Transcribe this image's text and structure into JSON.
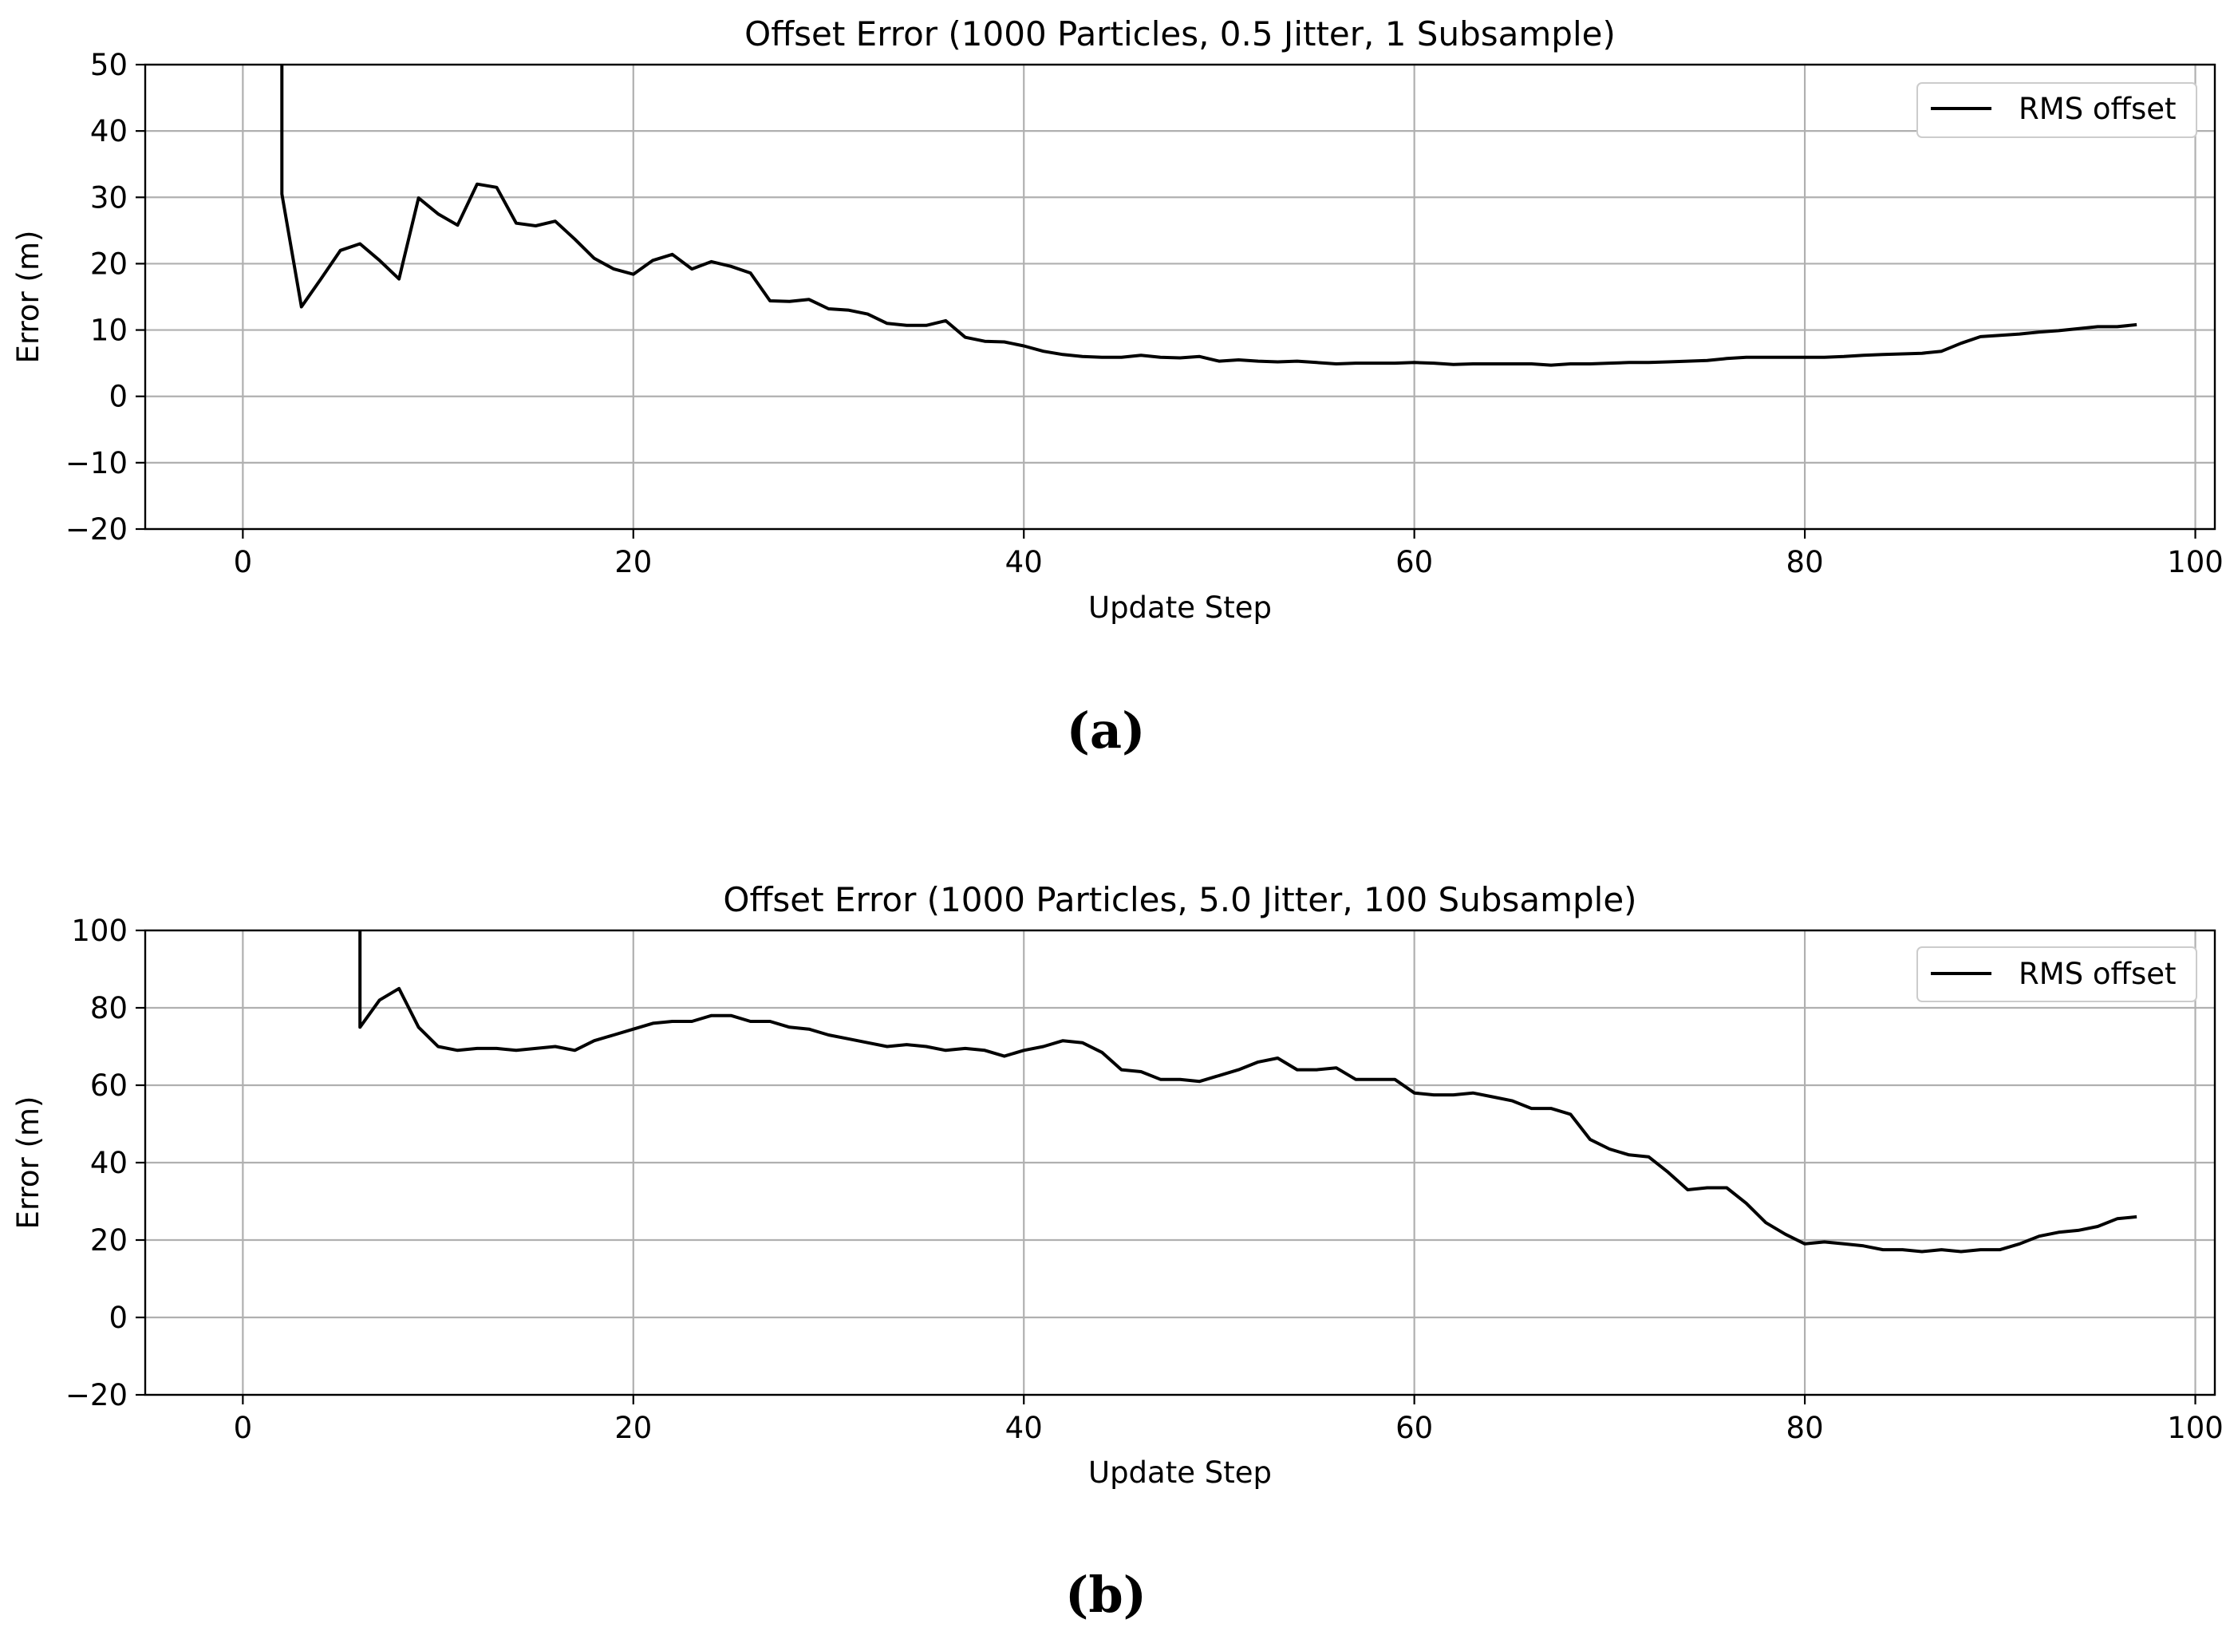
{
  "chart_data": [
    {
      "type": "line",
      "title": "Offset Error (1000 Particles, 0.5 Jitter, 1 Subsample)",
      "xlabel": "Update Step",
      "ylabel": "Error (m)",
      "xlim": [
        -5,
        101
      ],
      "ylim": [
        -20,
        50
      ],
      "xticks": [
        0,
        20,
        40,
        60,
        80,
        100
      ],
      "yticks": [
        -20,
        -10,
        0,
        10,
        20,
        30,
        40,
        50
      ],
      "grid": true,
      "legend": "top-right",
      "panel_label": "(a)",
      "series": [
        {
          "name": "RMS offset",
          "color": "#000000",
          "x": [
            2,
            2,
            2,
            3,
            4,
            5,
            6,
            7,
            8,
            9,
            10,
            11,
            12,
            13,
            14,
            15,
            16,
            17,
            18,
            19,
            20,
            21,
            22,
            23,
            24,
            25,
            26,
            27,
            28,
            29,
            30,
            31,
            32,
            33,
            34,
            35,
            36,
            37,
            38,
            39,
            40,
            41,
            42,
            43,
            44,
            45,
            46,
            47,
            48,
            49,
            50,
            51,
            52,
            53,
            54,
            55,
            56,
            57,
            58,
            59,
            60,
            61,
            62,
            63,
            64,
            65,
            66,
            67,
            68,
            69,
            70,
            71,
            72,
            73,
            74,
            75,
            76,
            77,
            78,
            79,
            80,
            81,
            82,
            83,
            84,
            85,
            86,
            87,
            88,
            89,
            90,
            91,
            92,
            93,
            94,
            95,
            96,
            97
          ],
          "y": [
            50,
            38,
            30.5,
            13.5,
            17.7,
            22,
            23,
            20.5,
            17.7,
            29.9,
            27.5,
            25.8,
            32,
            31.5,
            26.1,
            25.7,
            26.4,
            23.7,
            20.8,
            19.2,
            18.4,
            20.5,
            21.4,
            19.2,
            20.3,
            19.6,
            18.6,
            14.4,
            14.3,
            14.6,
            13.2,
            13.0,
            12.4,
            11.0,
            10.7,
            10.7,
            11.4,
            8.9,
            8.3,
            8.2,
            7.6,
            6.8,
            6.3,
            6.0,
            5.9,
            5.9,
            6.2,
            5.9,
            5.8,
            6.0,
            5.3,
            5.5,
            5.3,
            5.2,
            5.3,
            5.1,
            4.9,
            5.0,
            5.0,
            5.0,
            5.1,
            5.0,
            4.8,
            4.9,
            4.9,
            4.9,
            4.9,
            4.7,
            4.9,
            4.9,
            5.0,
            5.1,
            5.1,
            5.2,
            5.3,
            5.4,
            5.7,
            5.9,
            5.9,
            5.9,
            5.9,
            5.9,
            6.0,
            6.2,
            6.3,
            6.4,
            6.5,
            6.8,
            8.0,
            9.0,
            9.2,
            9.4,
            9.7,
            9.9,
            10.2,
            10.5,
            10.5,
            10.8
          ]
        }
      ]
    },
    {
      "type": "line",
      "title": "Offset Error (1000 Particles, 5.0 Jitter, 100 Subsample)",
      "xlabel": "Update Step",
      "ylabel": "Error (m)",
      "xlim": [
        -5,
        101
      ],
      "ylim": [
        -20,
        100
      ],
      "xticks": [
        0,
        20,
        40,
        60,
        80,
        100
      ],
      "yticks": [
        -20,
        0,
        20,
        40,
        60,
        80,
        100
      ],
      "grid": true,
      "legend": "top-right",
      "panel_label": "(b)",
      "series": [
        {
          "name": "RMS offset",
          "color": "#000000",
          "x": [
            6,
            6,
            7,
            8,
            9,
            10,
            11,
            12,
            13,
            14,
            15,
            16,
            17,
            18,
            19,
            20,
            21,
            22,
            23,
            24,
            25,
            26,
            27,
            28,
            29,
            30,
            31,
            32,
            33,
            34,
            35,
            36,
            37,
            38,
            39,
            40,
            41,
            42,
            43,
            44,
            45,
            46,
            47,
            48,
            49,
            50,
            51,
            52,
            53,
            54,
            55,
            56,
            57,
            58,
            59,
            60,
            61,
            62,
            63,
            64,
            65,
            66,
            67,
            68,
            69,
            70,
            71,
            72,
            73,
            74,
            75,
            76,
            77,
            78,
            79,
            80,
            81,
            82,
            83,
            84,
            85,
            86,
            87,
            88,
            89,
            90,
            91,
            92,
            93,
            94,
            95,
            96,
            97
          ],
          "y": [
            100,
            75,
            82,
            85,
            75,
            70,
            69,
            69.5,
            69.5,
            69,
            69.5,
            70,
            69,
            71.5,
            73,
            74.5,
            76,
            76.5,
            76.5,
            78,
            78,
            76.5,
            76.5,
            75,
            74.5,
            73,
            72,
            71,
            70,
            70.5,
            70,
            69,
            69.5,
            69,
            67.5,
            69,
            70,
            71.5,
            71,
            68.5,
            64,
            63.5,
            61.5,
            61.5,
            61,
            62.5,
            64,
            66,
            67,
            64,
            64,
            64.5,
            61.5,
            61.5,
            61.5,
            58,
            57.5,
            57.5,
            58,
            57,
            56,
            54,
            54,
            52.5,
            46,
            43.5,
            42,
            41.5,
            37.5,
            33,
            33.5,
            33.5,
            29.5,
            24.5,
            21.5,
            19,
            19.5,
            19,
            18.5,
            17.5,
            17.5,
            17,
            17.5,
            17,
            17.5,
            17.5,
            19,
            21,
            22,
            22.5,
            23.5,
            25.5,
            26
          ]
        }
      ]
    }
  ]
}
